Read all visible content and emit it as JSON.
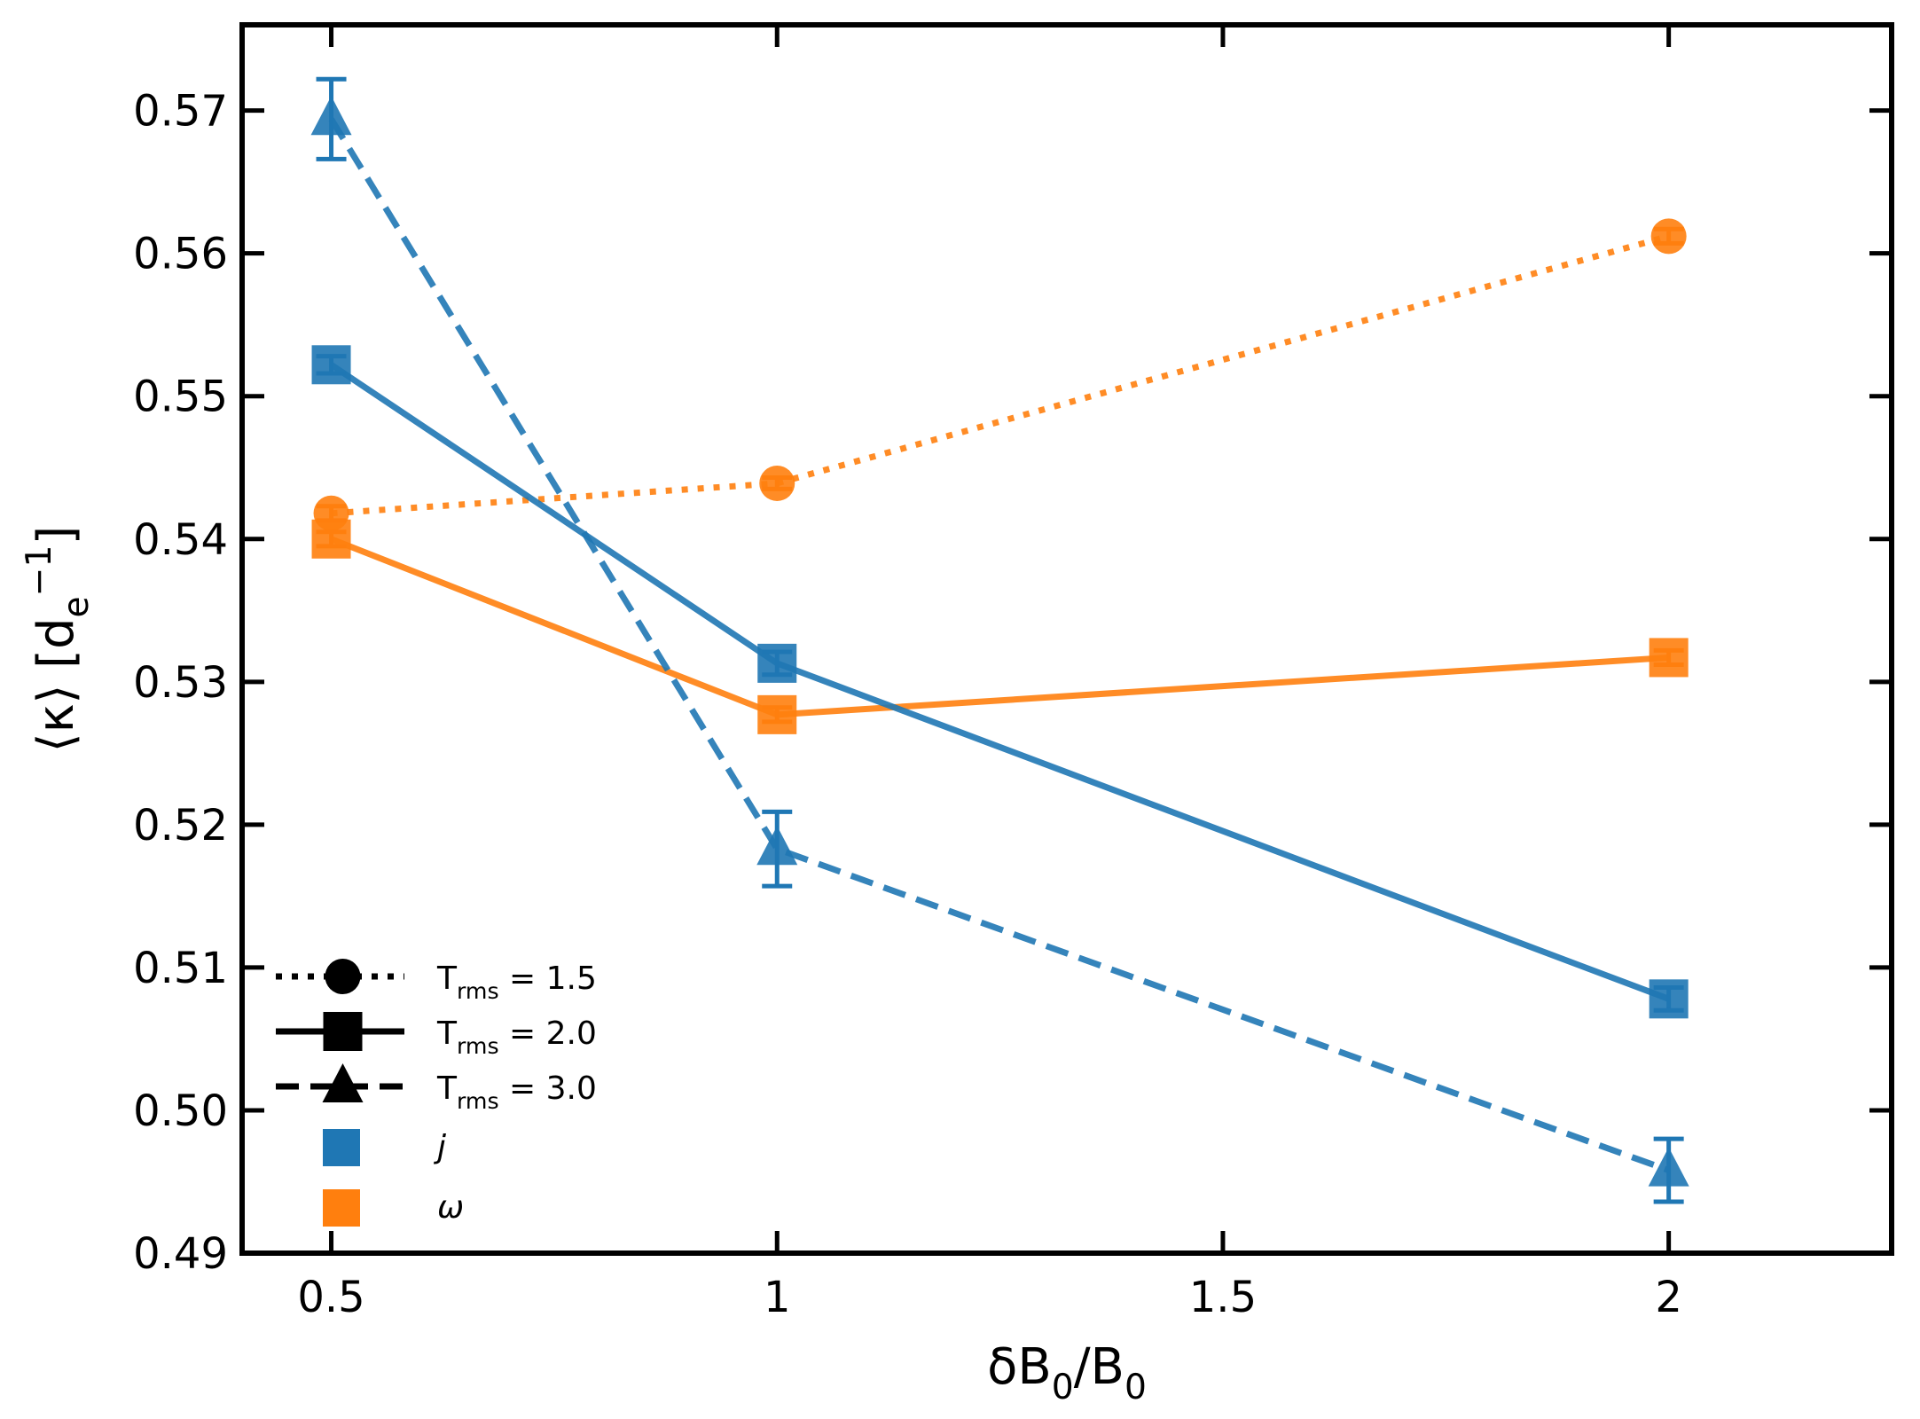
{
  "chart_data": {
    "type": "line",
    "x": [
      0.5,
      1,
      2
    ],
    "xlim": [
      0.4,
      2.25
    ],
    "ylim": [
      0.49,
      0.576
    ],
    "xticks": [
      0.5,
      1,
      1.5,
      2
    ],
    "yticks": [
      0.49,
      {
        "value": 0.5,
        "label": "0.50"
      },
      0.51,
      0.52,
      0.53,
      0.54,
      0.55,
      0.56,
      0.57
    ],
    "xlabel": [
      {
        "text": "δB",
        "shift": null
      },
      {
        "text": "0",
        "shift": "sub"
      },
      {
        "text": "/B",
        "shift": null
      },
      {
        "text": "0",
        "shift": "sub"
      }
    ],
    "ylabel": [
      {
        "text": "⟨κ⟩ [",
        "shift": null
      },
      {
        "text": "d",
        "shift": null
      },
      {
        "text": "e",
        "shift": "sub"
      },
      {
        "text": "−1",
        "shift": "sup"
      },
      {
        "text": "]",
        "shift": null
      }
    ],
    "series": [
      {
        "color": "#ff7f0e",
        "linestyle": "dotted",
        "marker": "circle",
        "values": [
          0.5418,
          0.5439,
          0.5612
        ],
        "errors": [
          0.0005,
          0.0004,
          0.0005
        ]
      },
      {
        "color": "#ff7f0e",
        "linestyle": "solid",
        "marker": "square",
        "values": [
          0.54,
          0.5277,
          0.5317
        ],
        "errors": [
          0.0005,
          0.0005,
          0.0005
        ]
      },
      {
        "color": "#1f77b4",
        "linestyle": "solid",
        "marker": "square",
        "values": [
          0.5522,
          0.5313,
          0.5078
        ],
        "errors": [
          0.0006,
          0.0008,
          0.0008
        ]
      },
      {
        "color": "#1f77b4",
        "linestyle": "dashed",
        "marker": "triangle",
        "values": [
          0.5694,
          0.5183,
          0.4958
        ],
        "errors": [
          0.0028,
          0.0026,
          0.0022
        ]
      }
    ],
    "legend_styles": [
      {
        "linestyle": "dotted",
        "marker": "circle",
        "label": [
          {
            "text": "T",
            "shift": null
          },
          {
            "text": "rms",
            "shift": "sub"
          },
          {
            "text": " = 1.5",
            "shift": null
          }
        ]
      },
      {
        "linestyle": "solid",
        "marker": "square",
        "label": [
          {
            "text": "T",
            "shift": null
          },
          {
            "text": "rms",
            "shift": "sub"
          },
          {
            "text": " = 2.0",
            "shift": null
          }
        ]
      },
      {
        "linestyle": "dashed",
        "marker": "triangle",
        "label": [
          {
            "text": "T",
            "shift": null
          },
          {
            "text": "rms",
            "shift": "sub"
          },
          {
            "text": " = 3.0",
            "shift": null
          }
        ]
      }
    ],
    "legend_colors": [
      {
        "label": "j",
        "color": "#1f77b4"
      },
      {
        "label": "ω",
        "color": "#ff7f0e"
      }
    ],
    "legend_loc": "lower left"
  }
}
